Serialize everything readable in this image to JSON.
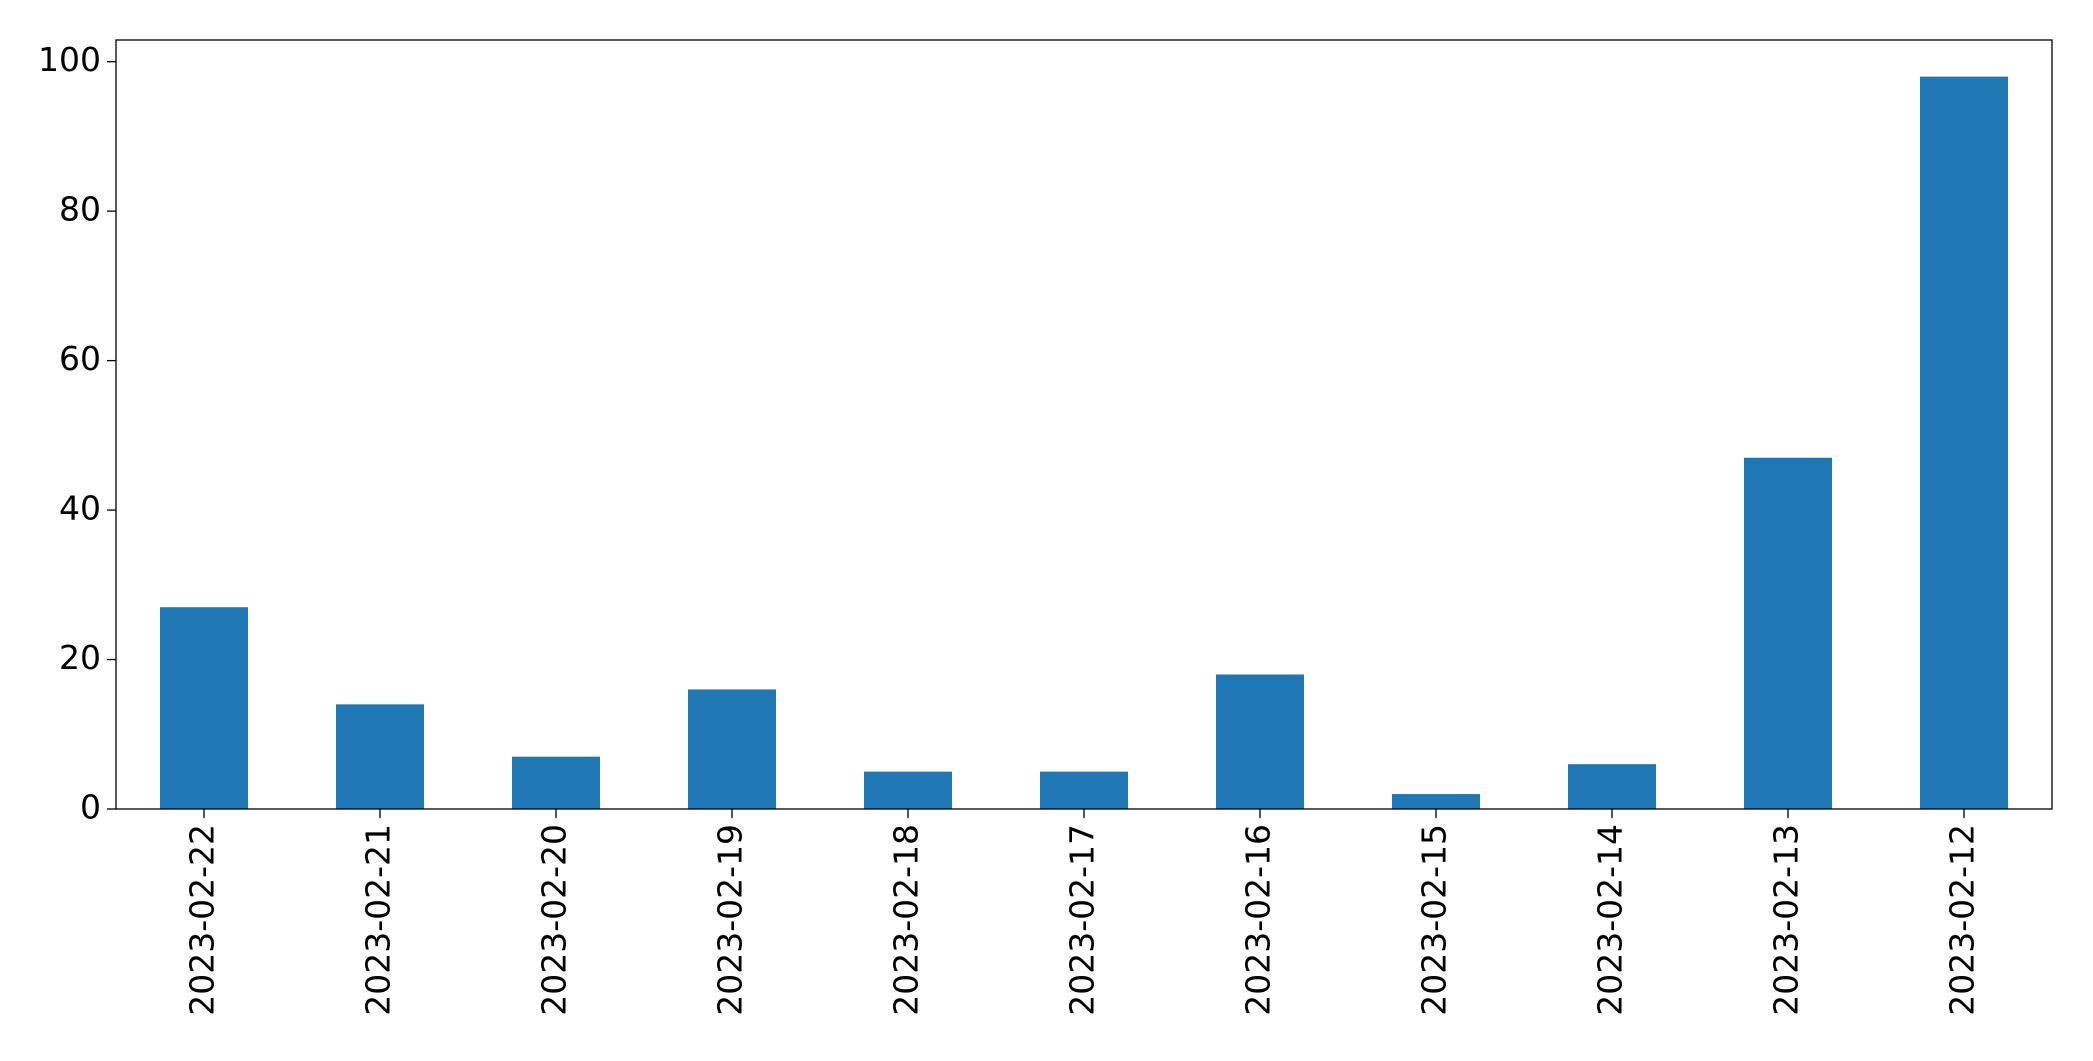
{
  "chart_data": {
    "type": "bar",
    "categories": [
      "2023-02-22",
      "2023-02-21",
      "2023-02-20",
      "2023-02-19",
      "2023-02-18",
      "2023-02-17",
      "2023-02-16",
      "2023-02-15",
      "2023-02-14",
      "2023-02-13",
      "2023-02-12"
    ],
    "values": [
      27,
      14,
      7,
      16,
      5,
      5,
      18,
      2,
      6,
      47,
      98
    ],
    "color": "#1f77b4",
    "ylim": [
      0,
      102.9
    ],
    "yticks": [
      0,
      20,
      40,
      60,
      80,
      100
    ],
    "grid": false
  }
}
